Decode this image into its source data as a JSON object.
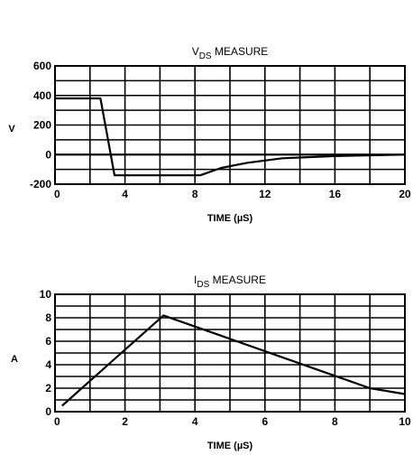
{
  "chart_data": [
    {
      "type": "line",
      "title": "V",
      "title_subscript": "DS",
      "title_suffix": " MEASURE",
      "xlabel": "TIME (µS)",
      "ylabel": "V",
      "xlim": [
        0,
        20
      ],
      "ylim": [
        -200,
        600
      ],
      "x_ticks": [
        0,
        4,
        8,
        12,
        16,
        20
      ],
      "y_ticks": [
        -200,
        0,
        200,
        400,
        600
      ],
      "x_tick_labels": [
        "0",
        "4",
        "8",
        "12",
        "16",
        "20"
      ],
      "y_tick_labels": [
        "-200",
        "0",
        "200",
        "400",
        "600"
      ],
      "grid": true,
      "x_grid_step": 2,
      "y_grid_step": 100,
      "series": [
        {
          "x": [
            0,
            2.6,
            3.4,
            8.3,
            9.5,
            11,
            13,
            16,
            20
          ],
          "y": [
            380,
            380,
            -140,
            -140,
            -90,
            -55,
            -25,
            -10,
            0
          ]
        }
      ]
    },
    {
      "type": "line",
      "title": "I",
      "title_subscript": "DS",
      "title_suffix": " MEASURE",
      "xlabel": "TIME (µS)",
      "ylabel": "A",
      "xlim": [
        0,
        10
      ],
      "ylim": [
        0,
        10
      ],
      "x_ticks": [
        0,
        2,
        4,
        6,
        8,
        10
      ],
      "y_ticks": [
        0,
        2,
        4,
        6,
        8,
        10
      ],
      "x_tick_labels": [
        "0",
        "2",
        "4",
        "6",
        "8",
        "10"
      ],
      "y_tick_labels": [
        "0",
        "2",
        "4",
        "6",
        "8",
        "10"
      ],
      "grid": true,
      "x_grid_step": 1,
      "y_grid_step": 1,
      "series": [
        {
          "x": [
            0.2,
            3.1,
            9,
            10
          ],
          "y": [
            0.5,
            8.2,
            2,
            1.5
          ]
        }
      ]
    }
  ]
}
